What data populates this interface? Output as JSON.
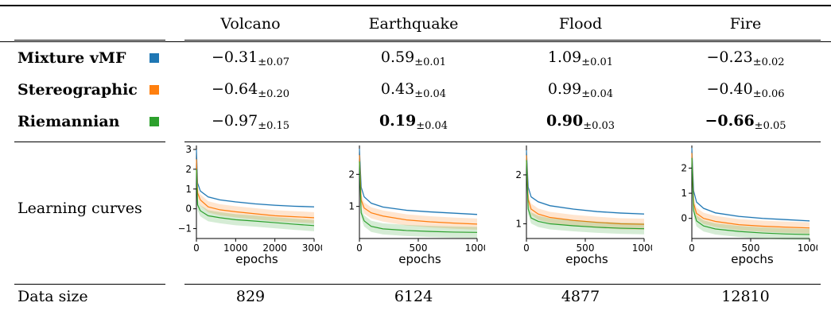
{
  "header": [
    "",
    "Volcano",
    "Earthquake",
    "Flood",
    "Fire"
  ],
  "methods": [
    {
      "name": "Mixture vMF",
      "color": "#1f77b4",
      "cells": [
        {
          "v": "−0.31",
          "s": "±0.07"
        },
        {
          "v": "0.59",
          "s": "±0.01"
        },
        {
          "v": "1.09",
          "s": "±0.01"
        },
        {
          "v": "−0.23",
          "s": "±0.02"
        }
      ]
    },
    {
      "name": "Stereographic",
      "color": "#ff7f0e",
      "cells": [
        {
          "v": "−0.64",
          "s": "±0.20"
        },
        {
          "v": "0.43",
          "s": "±0.04"
        },
        {
          "v": "0.99",
          "s": "±0.04"
        },
        {
          "v": "−0.40",
          "s": "±0.06"
        }
      ]
    },
    {
      "name": "Riemannian",
      "color": "#2ca02c",
      "cells": [
        {
          "v": "−0.97",
          "s": "±0.15"
        },
        {
          "v": "0.19",
          "s": "±0.04",
          "bold": true
        },
        {
          "v": "0.90",
          "s": "±0.03",
          "bold": true
        },
        {
          "v": "−0.66",
          "s": "±0.05",
          "bold": true
        }
      ]
    }
  ],
  "curves_label": "Learning curves",
  "data_size_label": "Data size",
  "data_sizes": [
    "829",
    "6124",
    "4877",
    "12810"
  ],
  "chart_data": [
    {
      "type": "line",
      "dataset": "Volcano",
      "xlabel": "epochs",
      "xlim": [
        0,
        3000
      ],
      "ylim": [
        -1.5,
        3.2
      ],
      "xticks": [
        0,
        1000,
        2000,
        3000
      ],
      "yticks": [
        -1,
        0,
        1,
        2,
        3
      ],
      "series": [
        {
          "name": "Mixture vMF",
          "points": [
            [
              0,
              3.0
            ],
            [
              30,
              1.3
            ],
            [
              100,
              0.9
            ],
            [
              300,
              0.6
            ],
            [
              600,
              0.45
            ],
            [
              1000,
              0.35
            ],
            [
              1500,
              0.25
            ],
            [
              2000,
              0.18
            ],
            [
              2500,
              0.13
            ],
            [
              3000,
              0.1
            ]
          ]
        },
        {
          "name": "Stereographic",
          "points": [
            [
              0,
              2.5
            ],
            [
              30,
              0.8
            ],
            [
              100,
              0.45
            ],
            [
              300,
              0.1
            ],
            [
              600,
              -0.05
            ],
            [
              1000,
              -0.15
            ],
            [
              1500,
              -0.25
            ],
            [
              2000,
              -0.35
            ],
            [
              2500,
              -0.4
            ],
            [
              3000,
              -0.45
            ]
          ]
        },
        {
          "name": "Riemannian",
          "points": [
            [
              0,
              2.0
            ],
            [
              30,
              0.2
            ],
            [
              100,
              -0.1
            ],
            [
              300,
              -0.35
            ],
            [
              600,
              -0.45
            ],
            [
              1000,
              -0.55
            ],
            [
              1500,
              -0.62
            ],
            [
              2000,
              -0.7
            ],
            [
              2500,
              -0.78
            ],
            [
              3000,
              -0.85
            ]
          ]
        }
      ]
    },
    {
      "type": "line",
      "dataset": "Earthquake",
      "xlabel": "epochs",
      "xlim": [
        0,
        1000
      ],
      "ylim": [
        0,
        2.9
      ],
      "xticks": [
        0,
        500,
        1000
      ],
      "yticks": [
        1,
        2
      ],
      "series": [
        {
          "name": "Mixture vMF",
          "points": [
            [
              0,
              2.8
            ],
            [
              15,
              1.6
            ],
            [
              40,
              1.3
            ],
            [
              100,
              1.1
            ],
            [
              200,
              0.98
            ],
            [
              400,
              0.88
            ],
            [
              600,
              0.83
            ],
            [
              800,
              0.79
            ],
            [
              1000,
              0.75
            ]
          ]
        },
        {
          "name": "Stereographic",
          "points": [
            [
              0,
              2.6
            ],
            [
              15,
              1.2
            ],
            [
              40,
              0.95
            ],
            [
              100,
              0.8
            ],
            [
              200,
              0.7
            ],
            [
              400,
              0.58
            ],
            [
              600,
              0.52
            ],
            [
              800,
              0.48
            ],
            [
              1000,
              0.45
            ]
          ]
        },
        {
          "name": "Riemannian",
          "points": [
            [
              0,
              2.4
            ],
            [
              15,
              0.8
            ],
            [
              40,
              0.55
            ],
            [
              100,
              0.38
            ],
            [
              200,
              0.3
            ],
            [
              400,
              0.25
            ],
            [
              600,
              0.22
            ],
            [
              800,
              0.2
            ],
            [
              1000,
              0.19
            ]
          ]
        }
      ]
    },
    {
      "type": "line",
      "dataset": "Flood",
      "xlabel": "epochs",
      "xlim": [
        0,
        1000
      ],
      "ylim": [
        0.7,
        2.6
      ],
      "xticks": [
        0,
        500,
        1000
      ],
      "yticks": [
        1,
        2
      ],
      "series": [
        {
          "name": "Mixture vMF",
          "points": [
            [
              0,
              2.5
            ],
            [
              15,
              1.75
            ],
            [
              40,
              1.55
            ],
            [
              100,
              1.45
            ],
            [
              200,
              1.37
            ],
            [
              400,
              1.3
            ],
            [
              600,
              1.25
            ],
            [
              800,
              1.22
            ],
            [
              1000,
              1.2
            ]
          ]
        },
        {
          "name": "Stereographic",
          "points": [
            [
              0,
              2.4
            ],
            [
              15,
              1.5
            ],
            [
              40,
              1.3
            ],
            [
              100,
              1.2
            ],
            [
              200,
              1.13
            ],
            [
              400,
              1.07
            ],
            [
              600,
              1.03
            ],
            [
              800,
              1.0
            ],
            [
              1000,
              0.99
            ]
          ]
        },
        {
          "name": "Riemannian",
          "points": [
            [
              0,
              2.3
            ],
            [
              15,
              1.3
            ],
            [
              40,
              1.12
            ],
            [
              100,
              1.05
            ],
            [
              200,
              1.0
            ],
            [
              400,
              0.96
            ],
            [
              600,
              0.93
            ],
            [
              800,
              0.91
            ],
            [
              1000,
              0.9
            ]
          ]
        }
      ]
    },
    {
      "type": "line",
      "dataset": "Fire",
      "xlabel": "epochs",
      "xlim": [
        0,
        1000
      ],
      "ylim": [
        -0.8,
        2.9
      ],
      "xticks": [
        0,
        500,
        1000
      ],
      "yticks": [
        0,
        1,
        2
      ],
      "series": [
        {
          "name": "Mixture vMF",
          "points": [
            [
              0,
              2.8
            ],
            [
              15,
              1.1
            ],
            [
              40,
              0.65
            ],
            [
              100,
              0.4
            ],
            [
              200,
              0.22
            ],
            [
              400,
              0.08
            ],
            [
              600,
              0.0
            ],
            [
              800,
              -0.05
            ],
            [
              1000,
              -0.1
            ]
          ]
        },
        {
          "name": "Stereographic",
          "points": [
            [
              0,
              2.6
            ],
            [
              15,
              0.6
            ],
            [
              40,
              0.2
            ],
            [
              100,
              0.0
            ],
            [
              200,
              -0.12
            ],
            [
              400,
              -0.25
            ],
            [
              600,
              -0.31
            ],
            [
              800,
              -0.35
            ],
            [
              1000,
              -0.38
            ]
          ]
        },
        {
          "name": "Riemannian",
          "points": [
            [
              0,
              2.4
            ],
            [
              15,
              0.3
            ],
            [
              40,
              -0.1
            ],
            [
              100,
              -0.3
            ],
            [
              200,
              -0.42
            ],
            [
              400,
              -0.52
            ],
            [
              600,
              -0.58
            ],
            [
              800,
              -0.62
            ],
            [
              1000,
              -0.64
            ]
          ]
        }
      ]
    }
  ]
}
